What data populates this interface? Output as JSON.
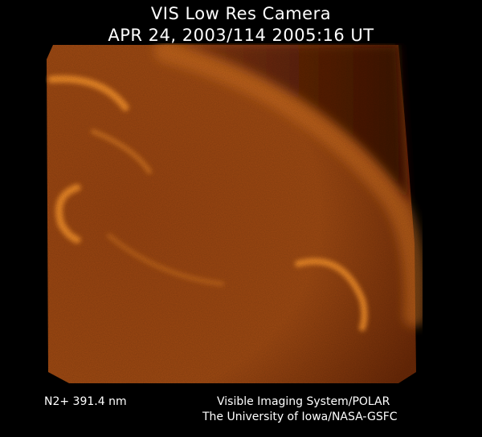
{
  "header": {
    "title": "VIS Low Res Camera",
    "datetime": "APR 24, 2003/114 2005:16 UT"
  },
  "image": {
    "subject": "aurora-oval-image",
    "colors": {
      "background": "#000000",
      "base": "#8a3a08",
      "glow": "#e07a1a",
      "bright": "#f59a30"
    }
  },
  "footer": {
    "filter": "N2+ 391.4 nm",
    "instrument": "Visible Imaging System/POLAR",
    "institution": "The University of Iowa/NASA-GSFC"
  }
}
